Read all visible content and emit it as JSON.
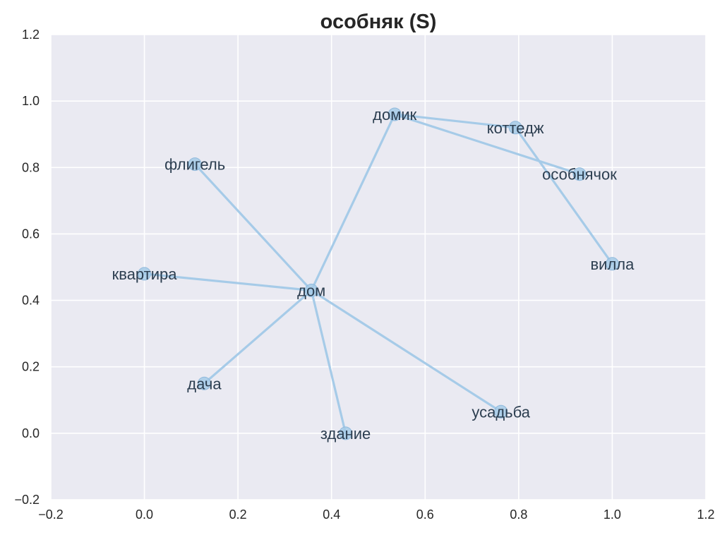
{
  "chart_data": {
    "type": "scatter",
    "title": "особняк (S)",
    "xlabel": "",
    "ylabel": "",
    "xlim": [
      -0.2,
      1.2
    ],
    "ylim": [
      -0.2,
      1.2
    ],
    "xticks": [
      "−0.2",
      "0.0",
      "0.2",
      "0.4",
      "0.6",
      "0.8",
      "1.0",
      "1.2"
    ],
    "yticks": [
      "−0.2",
      "0.0",
      "0.2",
      "0.4",
      "0.6",
      "0.8",
      "1.0",
      "1.2"
    ],
    "grid": true,
    "colors": {
      "background": "#eaeaf2",
      "grid": "#ffffff",
      "edge": "#a6cbe8",
      "node": "#a6cbe8",
      "label": "#2c3e50"
    },
    "nodes": [
      {
        "label": "дом",
        "x": 0.357,
        "y": 0.43
      },
      {
        "label": "домик",
        "x": 0.535,
        "y": 0.96
      },
      {
        "label": "коттедж",
        "x": 0.793,
        "y": 0.92
      },
      {
        "label": "особнячок",
        "x": 0.93,
        "y": 0.78
      },
      {
        "label": "флигель",
        "x": 0.108,
        "y": 0.81
      },
      {
        "label": "вилла",
        "x": 1.0,
        "y": 0.51
      },
      {
        "label": "квартира",
        "x": 0.0,
        "y": 0.48
      },
      {
        "label": "дача",
        "x": 0.128,
        "y": 0.15
      },
      {
        "label": "усадьба",
        "x": 0.762,
        "y": 0.065
      },
      {
        "label": "здание",
        "x": 0.43,
        "y": 0.0
      }
    ],
    "edges": [
      [
        "дом",
        "флигель"
      ],
      [
        "дом",
        "квартира"
      ],
      [
        "дом",
        "дача"
      ],
      [
        "дом",
        "здание"
      ],
      [
        "дом",
        "усадьба"
      ],
      [
        "дом",
        "домик"
      ],
      [
        "домик",
        "коттедж"
      ],
      [
        "домик",
        "особнячок"
      ],
      [
        "коттедж",
        "вилла"
      ]
    ]
  }
}
